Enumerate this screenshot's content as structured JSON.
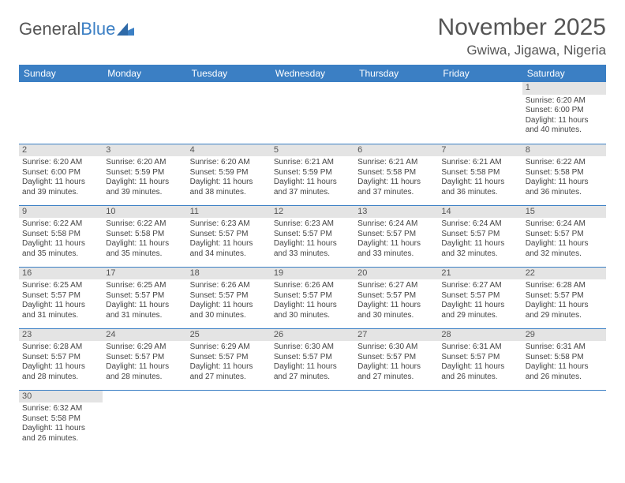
{
  "brand": {
    "part1": "General",
    "part2": "Blue"
  },
  "title": "November 2025",
  "location": "Gwiwa, Jigawa, Nigeria",
  "colors": {
    "header_bg": "#3b7fc4",
    "header_fg": "#ffffff",
    "daynum_bg": "#e4e4e4",
    "rule": "#3b7fc4",
    "text": "#444444"
  },
  "weekdays": [
    "Sunday",
    "Monday",
    "Tuesday",
    "Wednesday",
    "Thursday",
    "Friday",
    "Saturday"
  ],
  "weeks": [
    [
      null,
      null,
      null,
      null,
      null,
      null,
      {
        "n": "1",
        "sr": "Sunrise: 6:20 AM",
        "ss": "Sunset: 6:00 PM",
        "dl": "Daylight: 11 hours and 40 minutes."
      }
    ],
    [
      {
        "n": "2",
        "sr": "Sunrise: 6:20 AM",
        "ss": "Sunset: 6:00 PM",
        "dl": "Daylight: 11 hours and 39 minutes."
      },
      {
        "n": "3",
        "sr": "Sunrise: 6:20 AM",
        "ss": "Sunset: 5:59 PM",
        "dl": "Daylight: 11 hours and 39 minutes."
      },
      {
        "n": "4",
        "sr": "Sunrise: 6:20 AM",
        "ss": "Sunset: 5:59 PM",
        "dl": "Daylight: 11 hours and 38 minutes."
      },
      {
        "n": "5",
        "sr": "Sunrise: 6:21 AM",
        "ss": "Sunset: 5:59 PM",
        "dl": "Daylight: 11 hours and 37 minutes."
      },
      {
        "n": "6",
        "sr": "Sunrise: 6:21 AM",
        "ss": "Sunset: 5:58 PM",
        "dl": "Daylight: 11 hours and 37 minutes."
      },
      {
        "n": "7",
        "sr": "Sunrise: 6:21 AM",
        "ss": "Sunset: 5:58 PM",
        "dl": "Daylight: 11 hours and 36 minutes."
      },
      {
        "n": "8",
        "sr": "Sunrise: 6:22 AM",
        "ss": "Sunset: 5:58 PM",
        "dl": "Daylight: 11 hours and 36 minutes."
      }
    ],
    [
      {
        "n": "9",
        "sr": "Sunrise: 6:22 AM",
        "ss": "Sunset: 5:58 PM",
        "dl": "Daylight: 11 hours and 35 minutes."
      },
      {
        "n": "10",
        "sr": "Sunrise: 6:22 AM",
        "ss": "Sunset: 5:58 PM",
        "dl": "Daylight: 11 hours and 35 minutes."
      },
      {
        "n": "11",
        "sr": "Sunrise: 6:23 AM",
        "ss": "Sunset: 5:57 PM",
        "dl": "Daylight: 11 hours and 34 minutes."
      },
      {
        "n": "12",
        "sr": "Sunrise: 6:23 AM",
        "ss": "Sunset: 5:57 PM",
        "dl": "Daylight: 11 hours and 33 minutes."
      },
      {
        "n": "13",
        "sr": "Sunrise: 6:24 AM",
        "ss": "Sunset: 5:57 PM",
        "dl": "Daylight: 11 hours and 33 minutes."
      },
      {
        "n": "14",
        "sr": "Sunrise: 6:24 AM",
        "ss": "Sunset: 5:57 PM",
        "dl": "Daylight: 11 hours and 32 minutes."
      },
      {
        "n": "15",
        "sr": "Sunrise: 6:24 AM",
        "ss": "Sunset: 5:57 PM",
        "dl": "Daylight: 11 hours and 32 minutes."
      }
    ],
    [
      {
        "n": "16",
        "sr": "Sunrise: 6:25 AM",
        "ss": "Sunset: 5:57 PM",
        "dl": "Daylight: 11 hours and 31 minutes."
      },
      {
        "n": "17",
        "sr": "Sunrise: 6:25 AM",
        "ss": "Sunset: 5:57 PM",
        "dl": "Daylight: 11 hours and 31 minutes."
      },
      {
        "n": "18",
        "sr": "Sunrise: 6:26 AM",
        "ss": "Sunset: 5:57 PM",
        "dl": "Daylight: 11 hours and 30 minutes."
      },
      {
        "n": "19",
        "sr": "Sunrise: 6:26 AM",
        "ss": "Sunset: 5:57 PM",
        "dl": "Daylight: 11 hours and 30 minutes."
      },
      {
        "n": "20",
        "sr": "Sunrise: 6:27 AM",
        "ss": "Sunset: 5:57 PM",
        "dl": "Daylight: 11 hours and 30 minutes."
      },
      {
        "n": "21",
        "sr": "Sunrise: 6:27 AM",
        "ss": "Sunset: 5:57 PM",
        "dl": "Daylight: 11 hours and 29 minutes."
      },
      {
        "n": "22",
        "sr": "Sunrise: 6:28 AM",
        "ss": "Sunset: 5:57 PM",
        "dl": "Daylight: 11 hours and 29 minutes."
      }
    ],
    [
      {
        "n": "23",
        "sr": "Sunrise: 6:28 AM",
        "ss": "Sunset: 5:57 PM",
        "dl": "Daylight: 11 hours and 28 minutes."
      },
      {
        "n": "24",
        "sr": "Sunrise: 6:29 AM",
        "ss": "Sunset: 5:57 PM",
        "dl": "Daylight: 11 hours and 28 minutes."
      },
      {
        "n": "25",
        "sr": "Sunrise: 6:29 AM",
        "ss": "Sunset: 5:57 PM",
        "dl": "Daylight: 11 hours and 27 minutes."
      },
      {
        "n": "26",
        "sr": "Sunrise: 6:30 AM",
        "ss": "Sunset: 5:57 PM",
        "dl": "Daylight: 11 hours and 27 minutes."
      },
      {
        "n": "27",
        "sr": "Sunrise: 6:30 AM",
        "ss": "Sunset: 5:57 PM",
        "dl": "Daylight: 11 hours and 27 minutes."
      },
      {
        "n": "28",
        "sr": "Sunrise: 6:31 AM",
        "ss": "Sunset: 5:57 PM",
        "dl": "Daylight: 11 hours and 26 minutes."
      },
      {
        "n": "29",
        "sr": "Sunrise: 6:31 AM",
        "ss": "Sunset: 5:58 PM",
        "dl": "Daylight: 11 hours and 26 minutes."
      }
    ],
    [
      {
        "n": "30",
        "sr": "Sunrise: 6:32 AM",
        "ss": "Sunset: 5:58 PM",
        "dl": "Daylight: 11 hours and 26 minutes."
      },
      null,
      null,
      null,
      null,
      null,
      null
    ]
  ]
}
